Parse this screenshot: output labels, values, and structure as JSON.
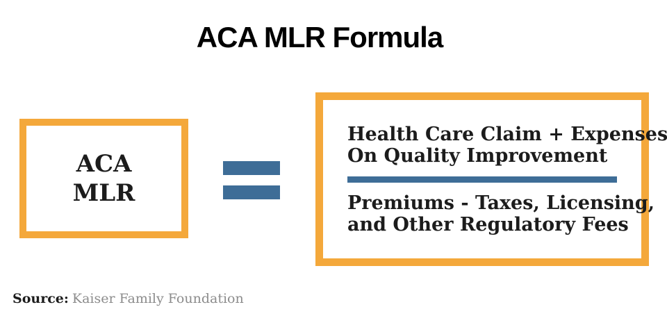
{
  "title": "ACA MLR Formula",
  "formula": {
    "lhs": {
      "line1": "ACA",
      "line2": "MLR"
    },
    "operator": "equals",
    "rhs": {
      "numerator_line1": "Health Care Claim + Expenses",
      "numerator_line2": "On Quality Improvement",
      "denominator_line1": "Premiums - Taxes, Licensing,",
      "denominator_line2": "and Other Regulatory Fees"
    }
  },
  "source": {
    "label": "Source:",
    "text": "Kaiser Family Foundation"
  },
  "colors": {
    "accent_orange": "#F4A83B",
    "accent_blue": "#3E6D97",
    "text_dark": "#1C1C1C",
    "source_gray": "#8C8C8C",
    "bg": "#FFFFFF"
  }
}
